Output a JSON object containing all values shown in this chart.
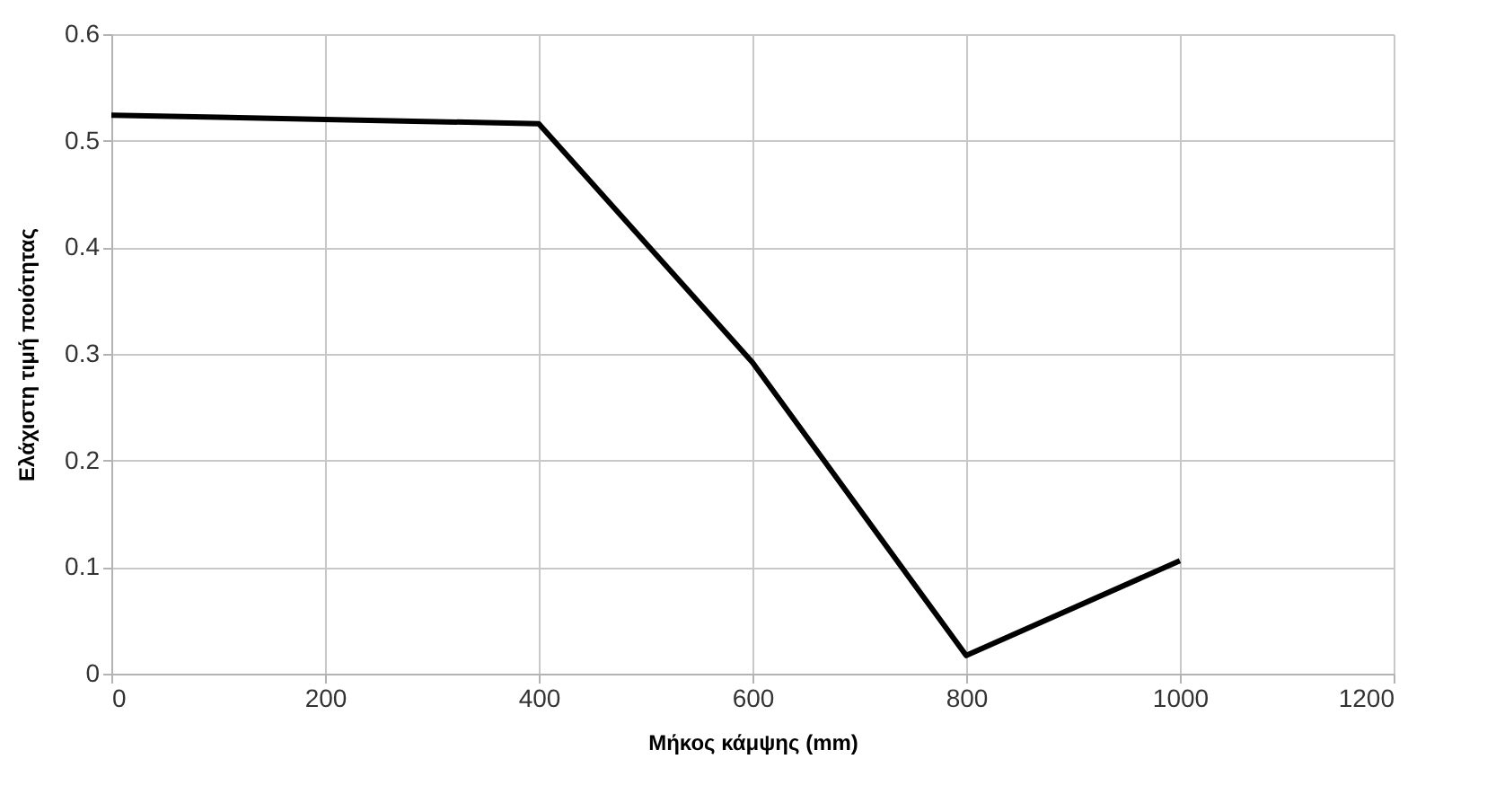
{
  "chart_data": {
    "type": "line",
    "xlabel": "Μήκος κάμψης (mm)",
    "ylabel": "Ελάχιστη τιμή ποιότητας",
    "x": [
      0,
      200,
      400,
      600,
      800,
      1000
    ],
    "series": [
      {
        "color": "#000000",
        "values": [
          0.524,
          0.52,
          0.516,
          0.292,
          0.017,
          0.106
        ]
      }
    ],
    "xlim": [
      0,
      1200
    ],
    "xticks": [
      0,
      200,
      400,
      600,
      800,
      1000,
      1200
    ],
    "ylim": [
      0,
      0.6
    ],
    "yticks": [
      0,
      0.1,
      0.2,
      0.3,
      0.4,
      0.5,
      0.6
    ],
    "grid": true,
    "marker": "none",
    "line_style": "solid"
  }
}
